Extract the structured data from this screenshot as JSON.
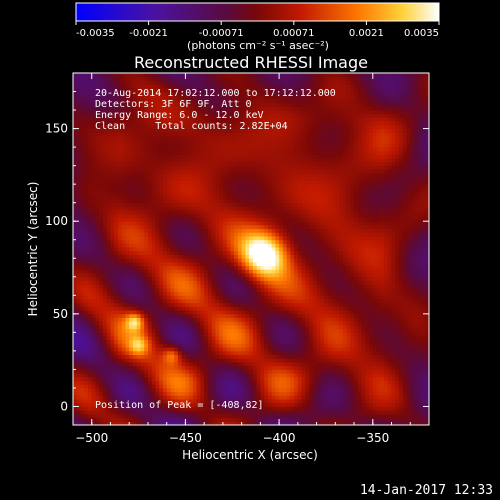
{
  "chart_data": {
    "type": "heatmap",
    "title": "Reconstructed RHESSI Image",
    "xlabel": "Heliocentric X (arcsec)",
    "ylabel": "Heliocentric Y (arcsec)",
    "xlim": [
      -510,
      -320
    ],
    "ylim": [
      -10,
      180
    ],
    "xticks": [
      -500,
      -450,
      -400,
      -350
    ],
    "yticks": [
      0,
      50,
      100,
      150
    ],
    "colorbar": {
      "range": [
        -0.0035,
        0.0035
      ],
      "ticks": [
        "-0.0035",
        "-0.0021",
        "-0.00071",
        "0.00071",
        "0.0021",
        "0.0035"
      ],
      "label": "(photons cm⁻² s⁻¹ asec⁻²)",
      "colormap": "blue-purple-red-yellow-white"
    },
    "annotations": [
      "20-Aug-2014 17:02:12.000 to 17:12:12.000",
      "Detectors: 3F 6F 9F, Att 0",
      "Energy Range: 6.0 - 12.0 keV",
      "Clean     Total counts: 2.82E+04"
    ],
    "peak_label": "Position of Peak = [-408,82]",
    "peak": {
      "x": -408,
      "y": 82
    },
    "sources": [
      {
        "x": -408,
        "y": 82,
        "value": 0.0035
      },
      {
        "x": -477,
        "y": 46,
        "value": 0.0021
      },
      {
        "x": -457,
        "y": 28,
        "value": 0.0017
      },
      {
        "x": -475,
        "y": 33,
        "value": 0.0014
      }
    ],
    "grid": false,
    "legend": "none"
  },
  "footer": {
    "timestamp": "14-Jan-2017 12:33"
  },
  "colors": {
    "background": "#000000",
    "text": "#ffffff"
  }
}
